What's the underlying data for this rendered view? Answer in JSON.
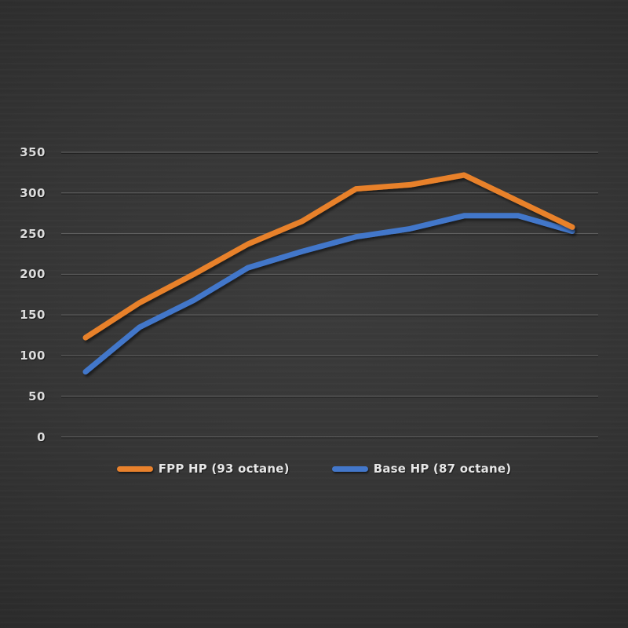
{
  "chart_data": {
    "type": "line",
    "title": "",
    "x_axis": {
      "tick_labels_visible": false,
      "num_points": 10,
      "tick_labels": []
    },
    "y_axis": {
      "ticks": [
        0,
        50,
        100,
        150,
        200,
        250,
        300,
        350
      ],
      "range": [
        0,
        350
      ],
      "label": ""
    },
    "grid": "horizontal-only",
    "legend_position": "bottom-center",
    "series": [
      {
        "name": "FPP HP (93 octane)",
        "color": "#e8812c",
        "values": [
          122,
          165,
          200,
          237,
          265,
          305,
          310,
          322,
          290,
          258
        ]
      },
      {
        "name": "Base HP (87 octane)",
        "color": "#4377ca",
        "values": [
          80,
          135,
          168,
          208,
          228,
          246,
          256,
          272,
          272,
          253
        ]
      }
    ]
  },
  "colors": {
    "background_center": "#3c3c3c",
    "background_edge": "#232323",
    "gridline": "rgba(255,255,255,0.22)",
    "tick_text": "#dcdcdc",
    "legend_text": "#e6e6e6"
  }
}
